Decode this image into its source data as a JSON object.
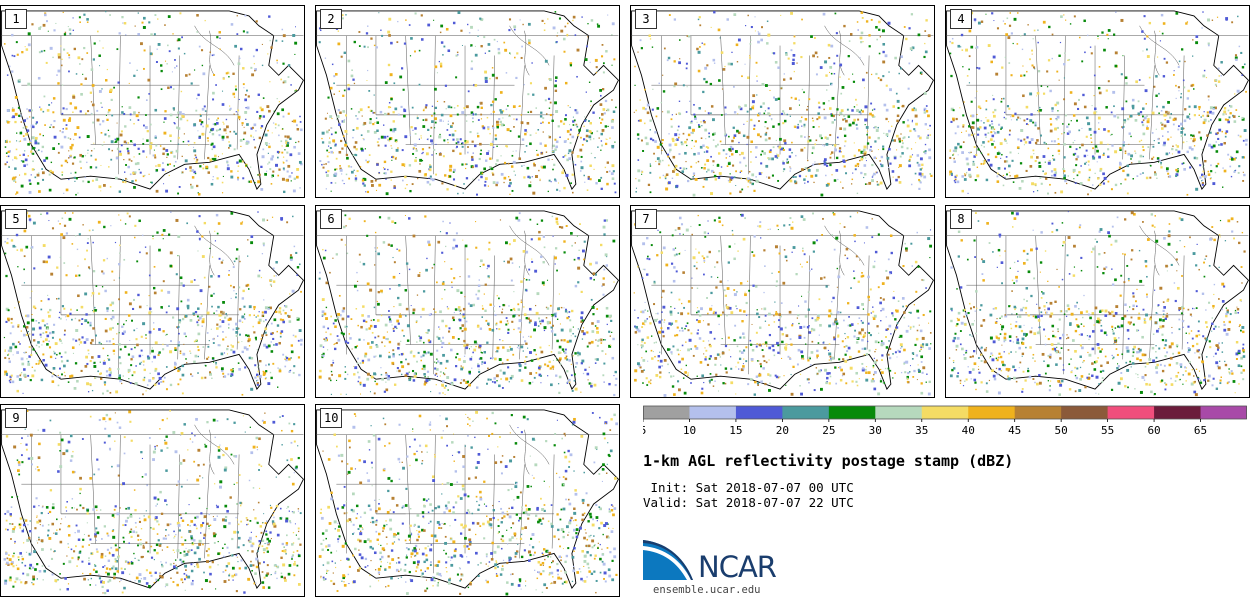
{
  "panels": [
    {
      "label": "1"
    },
    {
      "label": "2"
    },
    {
      "label": "3"
    },
    {
      "label": "4"
    },
    {
      "label": "5"
    },
    {
      "label": "6"
    },
    {
      "label": "7"
    },
    {
      "label": "8"
    },
    {
      "label": "9"
    },
    {
      "label": "10"
    }
  ],
  "colorbar": {
    "ticks": [
      "5",
      "10",
      "15",
      "20",
      "25",
      "30",
      "35",
      "40",
      "45",
      "50",
      "55",
      "60",
      "65"
    ],
    "colors": [
      "#a0a0a0",
      "#b4c0ec",
      "#4f5ad6",
      "#4b9a9e",
      "#078a0a",
      "#b6d9bd",
      "#f4dc64",
      "#efb21d",
      "#b78133",
      "#8b5a3a",
      "#f04e7c",
      "#6b1c3b",
      "#a84aa8"
    ]
  },
  "title": "1-km AGL reflectivity postage stamp (dBZ)",
  "init_text": " Init: Sat 2018-07-07 00 UTC",
  "valid_text": "Valid: Sat 2018-07-07 22 UTC",
  "logo": {
    "name": "NCAR",
    "url": "ensemble.ucar.edu"
  }
}
